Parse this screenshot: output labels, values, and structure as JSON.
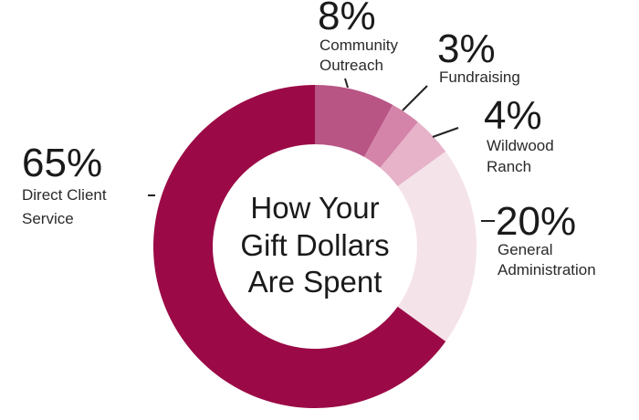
{
  "chart_data": {
    "type": "pie",
    "title_lines": [
      "How Your",
      "Gift Dollars",
      "Are Spent"
    ],
    "slices": [
      {
        "label_lines": [
          "Community",
          "Outreach"
        ],
        "percent_label": "8%",
        "value": 8,
        "color": "#b85585"
      },
      {
        "label_lines": [
          "Fundraising"
        ],
        "percent_label": "3%",
        "value": 3,
        "color": "#d484a8"
      },
      {
        "label_lines": [
          "Wildwood",
          "Ranch"
        ],
        "percent_label": "4%",
        "value": 4,
        "color": "#e6b3c9"
      },
      {
        "label_lines": [
          "General",
          "Administration"
        ],
        "percent_label": "20%",
        "value": 20,
        "color": "#f5e3ea"
      },
      {
        "label_lines": [
          "Direct Client",
          "Service"
        ],
        "percent_label": "65%",
        "value": 65,
        "color": "#9b0a46"
      }
    ]
  }
}
